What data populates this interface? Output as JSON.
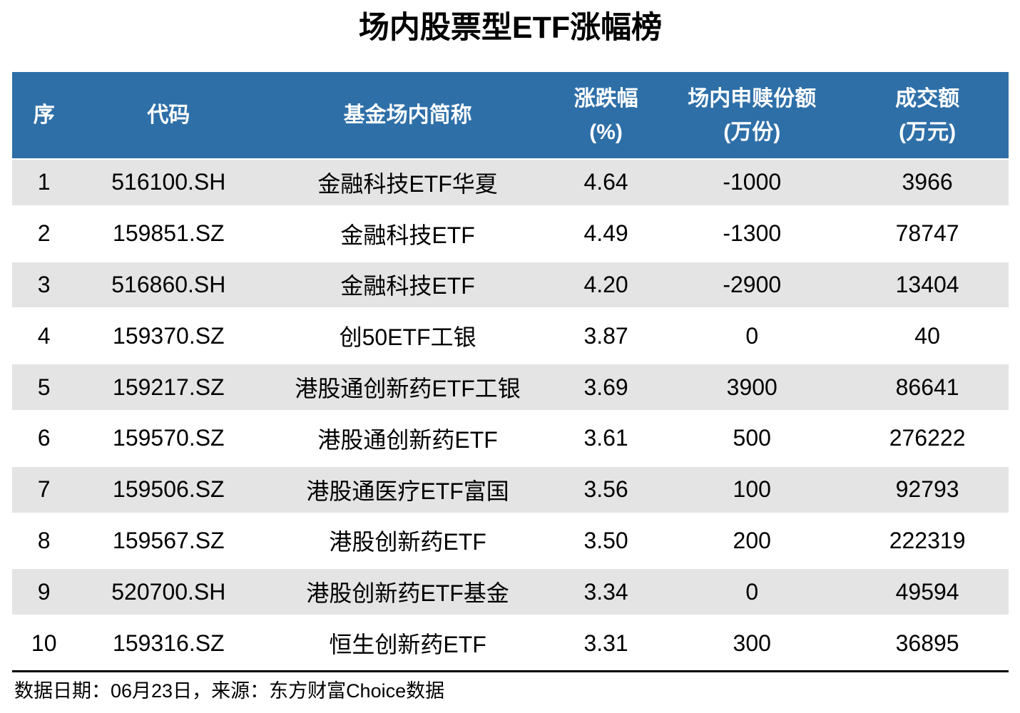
{
  "title": "场内股票型ETF涨幅榜",
  "columns": [
    {
      "line1": "序",
      "line2": ""
    },
    {
      "line1": "代码",
      "line2": ""
    },
    {
      "line1": "基金场内简称",
      "line2": ""
    },
    {
      "line1": "涨跌幅",
      "line2": "(%)"
    },
    {
      "line1": "场内申赎份额",
      "line2": "(万份)"
    },
    {
      "line1": "成交额",
      "line2": "(万元)"
    }
  ],
  "rows": [
    [
      "1",
      "516100.SH",
      "金融科技ETF华夏",
      "4.64",
      "-1000",
      "3966"
    ],
    [
      "2",
      "159851.SZ",
      "金融科技ETF",
      "4.49",
      "-1300",
      "78747"
    ],
    [
      "3",
      "516860.SH",
      "金融科技ETF",
      "4.20",
      "-2900",
      "13404"
    ],
    [
      "4",
      "159370.SZ",
      "创50ETF工银",
      "3.87",
      "0",
      "40"
    ],
    [
      "5",
      "159217.SZ",
      "港股通创新药ETF工银",
      "3.69",
      "3900",
      "86641"
    ],
    [
      "6",
      "159570.SZ",
      "港股通创新药ETF",
      "3.61",
      "500",
      "276222"
    ],
    [
      "7",
      "159506.SZ",
      "港股通医疗ETF富国",
      "3.56",
      "100",
      "92793"
    ],
    [
      "8",
      "159567.SZ",
      "港股创新药ETF",
      "3.50",
      "200",
      "222319"
    ],
    [
      "9",
      "520700.SH",
      "港股创新药ETF基金",
      "3.34",
      "0",
      "49594"
    ],
    [
      "10",
      "159316.SZ",
      "恒生创新药ETF",
      "3.31",
      "300",
      "36895"
    ]
  ],
  "footer_note": "数据日期：06月23日，来源：东方财富Choice数据",
  "colors": {
    "header_bg": "#2E6FA8",
    "header_text": "#FFFFFF",
    "row_alt_bg": "#E4E4E4",
    "row_bg": "#FFFFFF",
    "text": "#000000",
    "bottom_rule": "#000000"
  },
  "chart_data": {
    "type": "table",
    "title": "场内股票型ETF涨幅榜",
    "columns": [
      "序",
      "代码",
      "基金场内简称",
      "涨跌幅(%)",
      "场内申赎份额(万份)",
      "成交额(万元)"
    ],
    "rows": [
      [
        1,
        "516100.SH",
        "金融科技ETF华夏",
        4.64,
        -1000,
        3966
      ],
      [
        2,
        "159851.SZ",
        "金融科技ETF",
        4.49,
        -1300,
        78747
      ],
      [
        3,
        "516860.SH",
        "金融科技ETF",
        4.2,
        -2900,
        13404
      ],
      [
        4,
        "159370.SZ",
        "创50ETF工银",
        3.87,
        0,
        40
      ],
      [
        5,
        "159217.SZ",
        "港股通创新药ETF工银",
        3.69,
        3900,
        86641
      ],
      [
        6,
        "159570.SZ",
        "港股通创新药ETF",
        3.61,
        500,
        276222
      ],
      [
        7,
        "159506.SZ",
        "港股通医疗ETF富国",
        3.56,
        100,
        92793
      ],
      [
        8,
        "159567.SZ",
        "港股创新药ETF",
        3.5,
        200,
        222319
      ],
      [
        9,
        "520700.SH",
        "港股创新药ETF基金",
        3.34,
        0,
        49594
      ],
      [
        10,
        "159316.SZ",
        "恒生创新药ETF",
        3.31,
        300,
        36895
      ]
    ],
    "source_note": "数据日期：06月23日，来源：东方财富Choice数据",
    "layout_hints": {
      "header_style": "blue band, white bold text, two-line headers for numeric columns",
      "striping": "odd rows light gray (#E4E4E4), even rows white",
      "alignment": "all columns centered",
      "bottom_rule": "thick black line above source note"
    }
  }
}
